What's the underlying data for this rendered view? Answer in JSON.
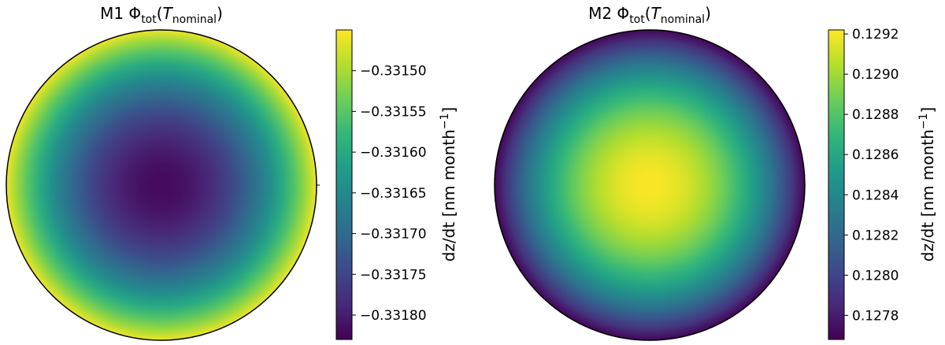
{
  "colormap": {
    "name": "viridis",
    "stops": [
      "#440154",
      "#482878",
      "#3e4989",
      "#31688e",
      "#26828e",
      "#1f9e89",
      "#35b779",
      "#6ece58",
      "#b5de2b",
      "#fde725"
    ]
  },
  "chart_data": [
    {
      "type": "heatmap",
      "title_main": "M1 Φ",
      "title_sub": "tot",
      "title_open": "(",
      "title_var": "T",
      "title_var_sub": "nominal",
      "title_close": ")",
      "shape": "circle",
      "pattern": "minimum at center, maximum at rim",
      "center_value": -0.33182,
      "edge_value": -0.33146,
      "colorbar": {
        "label": "dz/dt [nm month",
        "label_exp": "−1",
        "label_close": "]",
        "range": [
          -0.33183,
          -0.33145
        ],
        "ticks": [
          -0.3318,
          -0.33175,
          -0.3317,
          -0.33165,
          -0.3316,
          -0.33155,
          -0.3315
        ],
        "tick_labels": [
          "−0.33180",
          "−0.33175",
          "−0.33170",
          "−0.33165",
          "−0.33160",
          "−0.33155",
          "−0.33150"
        ]
      }
    },
    {
      "type": "heatmap",
      "title_main": "M2 Φ",
      "title_sub": "tot",
      "title_open": "(",
      "title_var": "T",
      "title_var_sub": "nominal",
      "title_close": ")",
      "shape": "circle",
      "pattern": "maximum at center, minimum at rim",
      "center_value": 0.12921,
      "edge_value": 0.1277,
      "colorbar": {
        "label": "dz/dt [nm month",
        "label_exp": "−1",
        "label_close": "]",
        "range": [
          0.12768,
          0.12922
        ],
        "ticks": [
          0.1278,
          0.128,
          0.1282,
          0.1284,
          0.1286,
          0.1288,
          0.129,
          0.1292
        ],
        "tick_labels": [
          "0.1278",
          "0.1280",
          "0.1282",
          "0.1284",
          "0.1286",
          "0.1288",
          "0.1290",
          "0.1292"
        ]
      }
    }
  ]
}
